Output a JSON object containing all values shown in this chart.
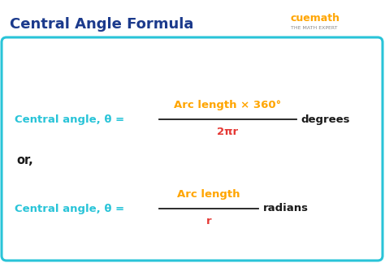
{
  "title": "Central Angle Formula",
  "title_color": "#1b3a8c",
  "title_fontsize": 13,
  "bg_color": "#ffffff",
  "box_edge_color": "#29c4d8",
  "box_bg_color": "#ffffff",
  "cyan_color": "#29c4d8",
  "orange_color": "#FFA500",
  "red_color": "#e53935",
  "black_color": "#1a1a1a",
  "formula1_left": "Central angle, θ = ",
  "formula1_numerator": "Arc length × 360°",
  "formula1_denominator": "2πr",
  "formula1_right": "degrees",
  "or_text": "or,",
  "formula2_left": "Central angle, θ = ",
  "formula2_numerator": "Arc length",
  "formula2_denominator": "r",
  "formula2_right": "radians",
  "cuemath_text": "cuemath",
  "cuemath_sub": "THE MATH EXPERT",
  "figw": 4.74,
  "figh": 3.24,
  "dpi": 100
}
